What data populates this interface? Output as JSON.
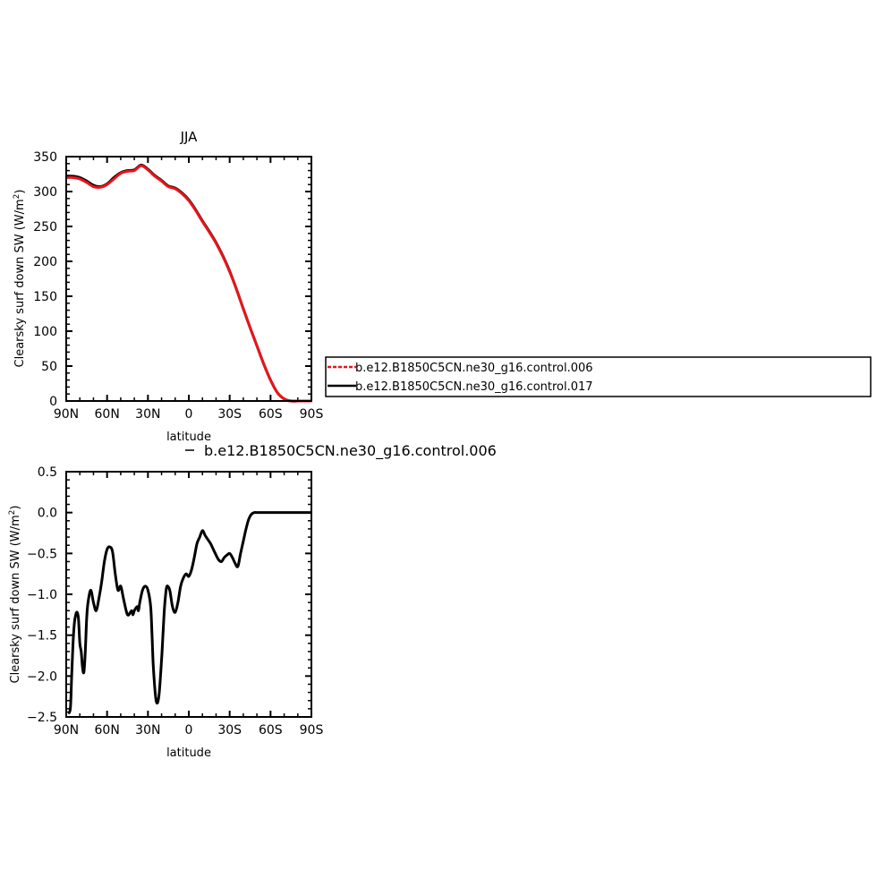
{
  "chart_data": [
    {
      "type": "line",
      "title": "JJA",
      "xlabel": "latitude",
      "ylabel": "Clearsky surf down SW (W/m",
      "ylabel_sup": "2",
      "ylabel_end": ")",
      "xlim": [
        90,
        -90
      ],
      "ylim": [
        0,
        350
      ],
      "x_ticks": [
        90,
        60,
        30,
        0,
        -30,
        -60,
        -90
      ],
      "x_tick_labels": [
        "90N",
        "60N",
        "30N",
        "0",
        "30S",
        "60S",
        "90S"
      ],
      "y_ticks": [
        0,
        50,
        100,
        150,
        200,
        250,
        300,
        350
      ],
      "y_tick_labels": [
        "0",
        "50",
        "100",
        "150",
        "200",
        "250",
        "300",
        "350"
      ],
      "legend": {
        "placement": "right",
        "entries": [
          {
            "label": "b.e12.B1850C5CN.ne30_g16.control.006",
            "color": "#e8141b",
            "dash": true
          },
          {
            "label": "b.e12.B1850C5CN.ne30_g16.control.017",
            "color": "#000000",
            "dash": false
          }
        ]
      },
      "series": [
        {
          "name": "b.e12.B1850C5CN.ne30_g16.control.017",
          "color": "#000000",
          "x": [
            90,
            85,
            80,
            75,
            70,
            65,
            60,
            55,
            50,
            45,
            40,
            35,
            30,
            25,
            20,
            15,
            10,
            5,
            0,
            -5,
            -10,
            -15,
            -20,
            -25,
            -30,
            -35,
            -40,
            -45,
            -50,
            -55,
            -60,
            -65,
            -70,
            -75,
            -80,
            -85,
            -90
          ],
          "values": [
            322,
            322,
            320,
            315,
            309,
            307,
            311,
            320,
            327,
            330,
            331,
            338,
            332,
            323,
            316,
            308,
            305,
            298,
            288,
            274,
            258,
            243,
            227,
            208,
            186,
            160,
            132,
            105,
            79,
            53,
            30,
            12,
            3,
            0,
            0,
            0,
            0
          ]
        },
        {
          "name": "b.e12.B1850C5CN.ne30_g16.control.006",
          "color": "#e8141b",
          "x": [
            90,
            85,
            80,
            75,
            70,
            65,
            60,
            55,
            50,
            45,
            40,
            35,
            30,
            25,
            20,
            15,
            10,
            5,
            0,
            -5,
            -10,
            -15,
            -20,
            -25,
            -30,
            -35,
            -40,
            -45,
            -50,
            -55,
            -60,
            -65,
            -70,
            -75,
            -80,
            -85,
            -90
          ],
          "values": [
            320,
            320,
            318,
            313,
            307,
            306,
            310,
            318,
            326,
            329,
            330,
            337,
            331,
            322,
            315,
            307,
            304,
            297,
            287,
            273,
            257,
            242,
            226,
            207,
            185,
            160,
            132,
            105,
            79,
            53,
            30,
            12,
            3,
            0,
            0,
            0,
            0
          ]
        }
      ]
    },
    {
      "type": "line",
      "title": "b.e12.B1850C5CN.ne30_g16.control.006",
      "xlabel": "latitude",
      "ylabel": "Clearsky surf down SW (W/m",
      "ylabel_sup": "2",
      "ylabel_end": ")",
      "xlim": [
        90,
        -90
      ],
      "ylim": [
        -2.5,
        0.5
      ],
      "x_ticks": [
        90,
        60,
        30,
        0,
        -30,
        -60,
        -90
      ],
      "x_tick_labels": [
        "90N",
        "60N",
        "30N",
        "0",
        "30S",
        "60S",
        "90S"
      ],
      "y_ticks": [
        -2.5,
        -2.0,
        -1.5,
        -1.0,
        -0.5,
        0.0,
        0.5
      ],
      "y_tick_labels": [
        "−2.5",
        "−2.0",
        "−1.5",
        "−1.0",
        "−0.5",
        "0.0",
        "0.5"
      ],
      "series": [
        {
          "name": "b.e12.B1850C5CN.ne30_g16.control.006",
          "color": "#000000",
          "x": [
            89,
            87,
            86,
            85,
            84,
            83,
            82,
            81,
            80,
            79,
            78,
            77,
            76,
            75,
            74,
            72,
            70,
            68,
            66,
            64,
            62,
            60,
            58,
            56,
            54,
            52,
            50,
            48,
            46,
            45,
            44,
            42,
            41,
            40,
            38,
            37,
            36,
            34,
            32,
            30,
            28,
            27,
            26,
            24,
            22,
            20,
            19,
            18,
            17,
            16,
            14,
            12,
            10,
            8,
            6,
            4,
            2,
            0,
            -2,
            -4,
            -6,
            -8,
            -10,
            -12,
            -14,
            -16,
            -18,
            -20,
            -22,
            -24,
            -26,
            -28,
            -30,
            -32,
            -34,
            -36,
            -38,
            -40,
            -42,
            -44,
            -46,
            -48,
            -50,
            -52,
            -54,
            -56,
            -58,
            -60,
            -62,
            -64,
            -66,
            -68,
            -70,
            -75,
            -80,
            -85,
            -90
          ],
          "values": [
            -2.45,
            -2.4,
            -2.0,
            -1.6,
            -1.35,
            -1.25,
            -1.22,
            -1.3,
            -1.6,
            -1.7,
            -1.9,
            -1.95,
            -1.7,
            -1.3,
            -1.1,
            -0.95,
            -1.1,
            -1.2,
            -1.05,
            -0.85,
            -0.6,
            -0.45,
            -0.42,
            -0.48,
            -0.75,
            -0.95,
            -0.9,
            -1.05,
            -1.2,
            -1.25,
            -1.25,
            -1.2,
            -1.25,
            -1.2,
            -1.15,
            -1.2,
            -1.1,
            -0.95,
            -0.9,
            -0.95,
            -1.15,
            -1.5,
            -1.9,
            -2.3,
            -2.25,
            -1.8,
            -1.5,
            -1.2,
            -1.0,
            -0.9,
            -0.95,
            -1.15,
            -1.22,
            -1.1,
            -0.9,
            -0.8,
            -0.75,
            -0.78,
            -0.7,
            -0.55,
            -0.38,
            -0.3,
            -0.22,
            -0.28,
            -0.33,
            -0.38,
            -0.45,
            -0.52,
            -0.58,
            -0.6,
            -0.55,
            -0.52,
            -0.5,
            -0.55,
            -0.62,
            -0.66,
            -0.5,
            -0.35,
            -0.2,
            -0.08,
            -0.02,
            0.0,
            0.0,
            0.0,
            0.0,
            0.0,
            0.0,
            0.0,
            0.0,
            0.0,
            0.0,
            0.0,
            0.0,
            0.0,
            0.0,
            0.0,
            0.0
          ]
        }
      ]
    }
  ]
}
